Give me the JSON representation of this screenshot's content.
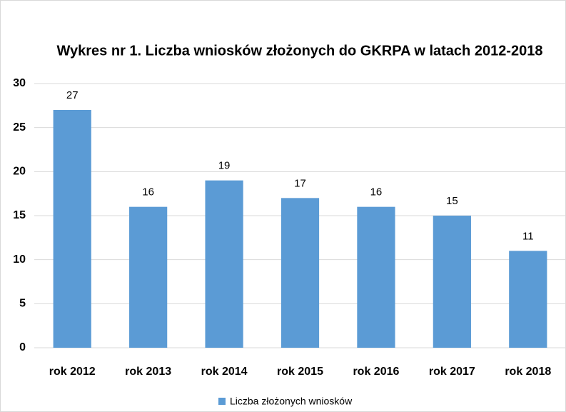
{
  "chart_data": {
    "type": "bar",
    "title": "Wykres nr 1. Liczba wniosków złożonych do GKRPA w latach 2012-2018",
    "categories": [
      "rok 2012",
      "rok 2013",
      "rok 2014",
      "rok 2015",
      "rok 2016",
      "rok 2017",
      "rok 2018"
    ],
    "series": [
      {
        "name": "Liczba złożonych wniosków",
        "color": "#5b9bd5",
        "values": [
          27,
          16,
          19,
          17,
          16,
          15,
          11
        ]
      }
    ],
    "ylim": [
      0,
      30
    ],
    "yticks": [
      0,
      5,
      10,
      15,
      20,
      25,
      30
    ],
    "grid": true,
    "legend": "bottom"
  }
}
